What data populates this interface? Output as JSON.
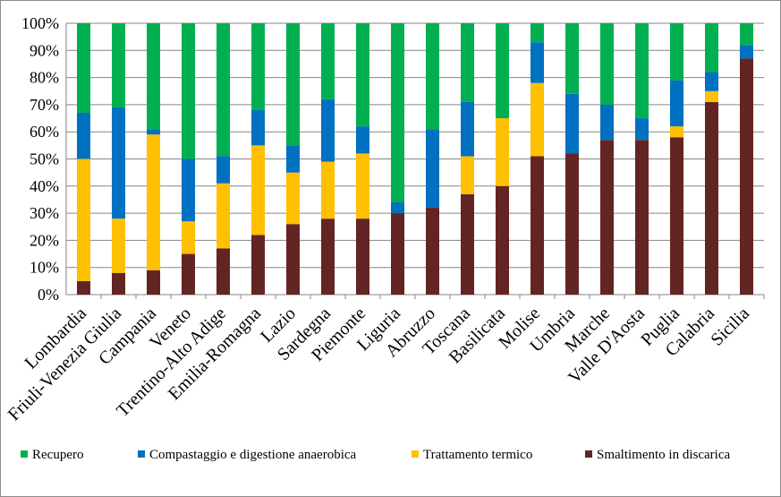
{
  "chart_data": {
    "type": "bar",
    "stacked": "percent",
    "categories": [
      "Lombardia",
      "Friuli-Venezia Giulia",
      "Campania",
      "Veneto",
      "Trentino-Alto Adige",
      "Emilia-Romagna",
      "Lazio",
      "Sardegna",
      "Piemonte",
      "Liguria",
      "Abruzzo",
      "Toscana",
      "Basilicata",
      "Molise",
      "Umbria",
      "Marche",
      "Valle D'Aosta",
      "Puglia",
      "Calabria",
      "Sicilia"
    ],
    "series": [
      {
        "name": "Smaltimento in discarica",
        "color": "#632523",
        "values": [
          5,
          8,
          9,
          15,
          17,
          22,
          26,
          28,
          28,
          30,
          32,
          37,
          40,
          51,
          52,
          57,
          57,
          58,
          71,
          87
        ]
      },
      {
        "name": "Trattamento termico",
        "color": "#ffc000",
        "values": [
          45,
          20,
          50,
          12,
          24,
          33,
          19,
          21,
          24,
          0,
          0,
          14,
          25,
          27,
          0,
          0,
          0,
          4,
          4,
          0
        ]
      },
      {
        "name": "Compastaggio e digestione anaerobica",
        "color": "#0070c0",
        "values": [
          17,
          41,
          2,
          23,
          10,
          13,
          10,
          23,
          10,
          4,
          29,
          20,
          0,
          15,
          22,
          13,
          8,
          17,
          7,
          5
        ]
      },
      {
        "name": "Recupero",
        "color": "#00b050",
        "values": [
          33,
          31,
          39,
          50,
          49,
          32,
          45,
          28,
          38,
          66,
          39,
          29,
          35,
          7,
          26,
          30,
          35,
          21,
          18,
          8
        ]
      }
    ],
    "ylim": [
      0,
      100
    ],
    "yticks": [
      "0%",
      "10%",
      "20%",
      "30%",
      "40%",
      "50%",
      "60%",
      "70%",
      "80%",
      "90%",
      "100%"
    ],
    "grid": "horizontal",
    "legend": {
      "position": "bottom",
      "order": [
        "Recupero",
        "Compastaggio e digestione anaerobica",
        "Trattamento termico",
        "Smaltimento in discarica"
      ]
    }
  }
}
